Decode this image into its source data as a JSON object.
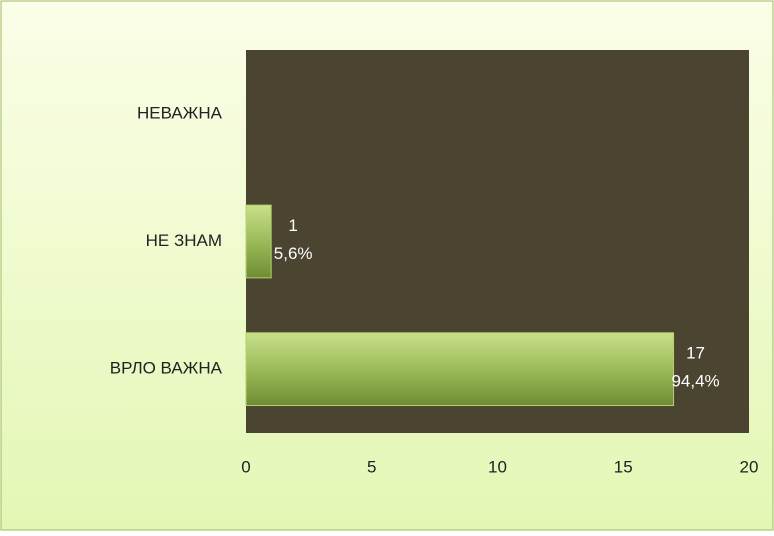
{
  "chart_data": {
    "type": "bar",
    "orientation": "horizontal",
    "categories": [
      "НЕВАЖНА",
      "НЕ ЗНАМ",
      "ВРЛО ВАЖНА"
    ],
    "values": [
      0,
      1,
      17
    ],
    "value_labels": [
      null,
      "1",
      "17"
    ],
    "percent_labels": [
      null,
      "5,6%",
      "94,4%"
    ],
    "color": "#9bbb59",
    "xlim": [
      0,
      20
    ],
    "xticks": [
      0,
      5,
      10,
      15,
      20
    ],
    "grid": false
  }
}
